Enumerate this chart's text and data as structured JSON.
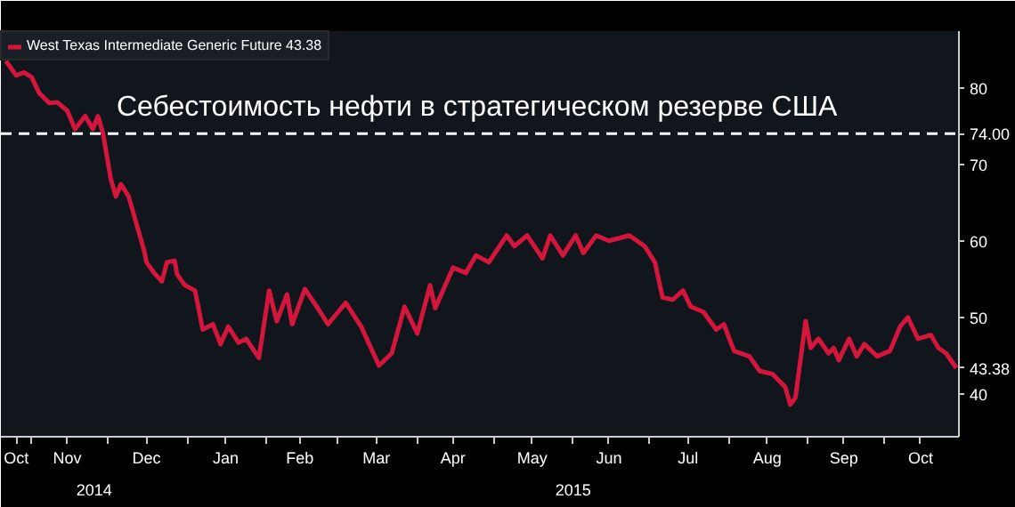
{
  "chart_data": {
    "type": "line",
    "x": [
      "2014-10-22",
      "2014-10-26",
      "2014-10-29",
      "2014-11-01",
      "2014-11-04",
      "2014-11-08",
      "2014-11-11",
      "2014-11-15",
      "2014-11-18",
      "2014-11-22",
      "2014-11-25",
      "2014-11-27",
      "2014-11-29",
      "2014-12-02",
      "2014-12-04",
      "2014-12-06",
      "2014-12-09",
      "2014-12-12",
      "2014-12-15",
      "2014-12-16",
      "2014-12-19",
      "2014-12-22",
      "2014-12-24",
      "2014-12-27",
      "2014-12-28",
      "2014-12-31",
      "2015-01-04",
      "2015-01-07",
      "2015-01-11",
      "2015-01-14",
      "2015-01-17",
      "2015-01-21",
      "2015-01-24",
      "2015-01-29",
      "2015-02-02",
      "2015-02-05",
      "2015-02-09",
      "2015-02-11",
      "2015-02-16",
      "2015-02-22",
      "2015-02-25",
      "2015-03-04",
      "2015-03-10",
      "2015-03-17",
      "2015-03-22",
      "2015-03-27",
      "2015-04-01",
      "2015-04-06",
      "2015-04-08",
      "2015-04-15",
      "2015-04-20",
      "2015-04-24",
      "2015-04-29",
      "2015-05-06",
      "2015-05-09",
      "2015-05-14",
      "2015-05-20",
      "2015-05-23",
      "2015-05-28",
      "2015-06-02",
      "2015-06-05",
      "2015-06-10",
      "2015-06-15",
      "2015-06-23",
      "2015-06-29",
      "2015-07-03",
      "2015-07-06",
      "2015-07-10",
      "2015-07-14",
      "2015-07-17",
      "2015-07-22",
      "2015-07-27",
      "2015-07-30",
      "2015-08-03",
      "2015-08-09",
      "2015-08-13",
      "2015-08-18",
      "2015-08-23",
      "2015-08-25",
      "2015-08-27",
      "2015-08-31",
      "2015-09-02",
      "2015-09-05",
      "2015-09-09",
      "2015-09-11",
      "2015-09-13",
      "2015-09-17",
      "2015-09-20",
      "2015-09-23",
      "2015-09-28",
      "2015-10-03",
      "2015-10-07",
      "2015-10-10",
      "2015-10-14",
      "2015-10-19",
      "2015-10-22",
      "2015-10-25",
      "2015-10-29"
    ],
    "series": [
      {
        "name": "West Texas Intermediate Generic Future 43.38",
        "color": "#d4163c",
        "values": [
          83.5,
          81.6,
          82.0,
          81.4,
          79.3,
          78.0,
          78.1,
          77.0,
          74.6,
          76.3,
          74.6,
          76.3,
          74.0,
          68.1,
          65.8,
          67.4,
          65.8,
          62.3,
          58.8,
          57.2,
          55.8,
          54.7,
          57.2,
          57.4,
          55.6,
          54.2,
          53.5,
          48.4,
          49.1,
          46.5,
          48.8,
          46.7,
          47.2,
          44.7,
          53.5,
          49.5,
          53.0,
          49.1,
          53.7,
          50.7,
          49.1,
          51.9,
          48.8,
          43.7,
          45.3,
          51.4,
          47.9,
          54.2,
          51.2,
          56.5,
          55.8,
          58.1,
          57.2,
          60.7,
          59.3,
          60.7,
          57.7,
          60.7,
          58.1,
          60.7,
          58.4,
          60.7,
          60.0,
          60.7,
          59.3,
          57.2,
          52.6,
          52.3,
          53.5,
          51.4,
          50.7,
          48.4,
          49.1,
          45.6,
          44.9,
          43.0,
          42.6,
          40.9,
          38.6,
          39.5,
          49.5,
          46.0,
          47.2,
          45.3,
          46.0,
          44.4,
          47.2,
          44.9,
          46.5,
          44.9,
          45.6,
          48.8,
          50.0,
          47.2,
          47.7,
          46.0,
          45.3,
          43.38
        ],
        "value_labels": [
          null,
          null,
          null,
          null,
          null,
          null,
          null,
          null,
          null,
          null,
          null,
          null,
          null,
          null,
          null,
          null,
          null,
          null,
          null,
          null,
          null,
          null,
          null,
          null,
          null,
          null,
          null,
          null,
          null,
          null,
          null,
          null,
          null,
          null,
          null,
          null,
          null,
          null,
          null,
          null,
          null,
          null,
          null,
          null,
          null,
          null,
          null,
          null,
          null,
          null,
          null,
          null,
          null,
          null,
          null,
          null,
          null,
          null,
          null,
          null,
          null,
          null,
          null,
          null,
          null,
          null,
          null,
          null,
          null,
          null,
          null,
          null,
          null,
          null,
          null,
          null,
          null,
          null,
          null,
          null,
          null,
          null,
          null,
          null,
          null,
          null,
          null,
          null,
          null,
          null,
          null,
          null,
          null,
          null,
          null,
          null,
          null,
          "43.38"
        ]
      }
    ],
    "xlim": [
      "2014-10-20",
      "2015-10-30"
    ],
    "xticks": [
      {
        "value": "2014-10-26",
        "label": "Oct"
      },
      {
        "value": "2014-11-01",
        "label": null
      },
      {
        "value": "2014-11-15",
        "label": "Nov"
      },
      {
        "value": "2014-12-01",
        "label": null
      },
      {
        "value": "2014-12-16",
        "label": "Dec"
      },
      {
        "value": "2015-01-01",
        "label": null
      },
      {
        "value": "2015-01-16",
        "label": "Jan"
      },
      {
        "value": "2015-02-01",
        "label": null
      },
      {
        "value": "2015-02-14",
        "label": "Feb"
      },
      {
        "value": "2015-03-01",
        "label": null
      },
      {
        "value": "2015-03-16",
        "label": "Mar"
      },
      {
        "value": "2015-04-01",
        "label": null
      },
      {
        "value": "2015-04-15",
        "label": "Apr"
      },
      {
        "value": "2015-05-01",
        "label": null
      },
      {
        "value": "2015-05-16",
        "label": "May"
      },
      {
        "value": "2015-06-01",
        "label": null
      },
      {
        "value": "2015-06-15",
        "label": "Jun"
      },
      {
        "value": "2015-07-01",
        "label": null
      },
      {
        "value": "2015-07-16",
        "label": "Jul"
      },
      {
        "value": "2015-08-01",
        "label": null
      },
      {
        "value": "2015-08-16",
        "label": "Aug"
      },
      {
        "value": "2015-09-01",
        "label": null
      },
      {
        "value": "2015-09-15",
        "label": "Sep"
      },
      {
        "value": "2015-10-01",
        "label": null
      },
      {
        "value": "2015-10-15",
        "label": "Oct"
      }
    ],
    "ylim": [
      34.4,
      87.4
    ],
    "yticks": [
      40,
      50,
      60,
      70,
      {
        "value": 74,
        "label": "74.00"
      },
      80
    ],
    "ref_lines": [
      {
        "axis": "y",
        "value": 74,
        "label": "Себестоимость нефти в стратегическом резерве США",
        "color": "#ffffff",
        "line_style": "dashed"
      }
    ],
    "annotations": [
      "2014",
      "2015"
    ],
    "legend": "top left",
    "grid": false,
    "marker": "none",
    "line_style": "solid"
  }
}
